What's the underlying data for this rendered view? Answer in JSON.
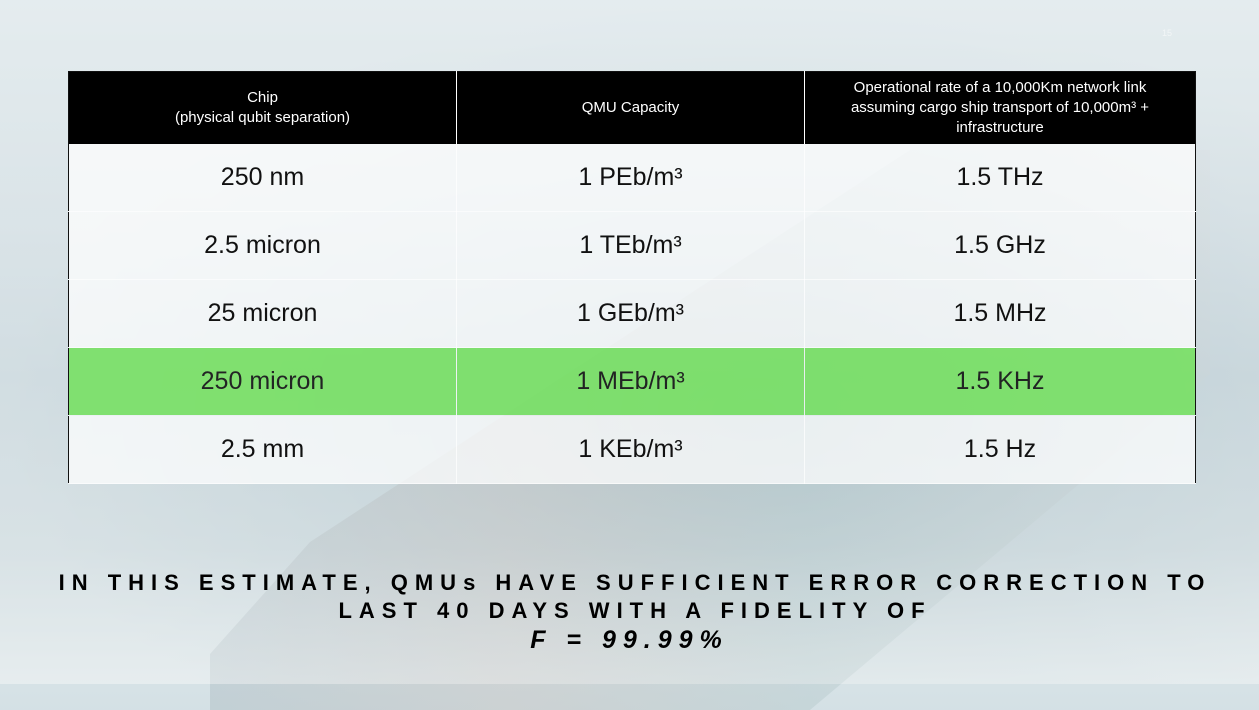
{
  "slide": {
    "page_number": "15"
  },
  "table": {
    "headers": [
      [
        "Chip",
        "(physical qubit separation)"
      ],
      [
        "QMU Capacity"
      ],
      [
        "Operational rate of a 10,000Km network link",
        "assuming cargo ship transport of 10,000m³ +",
        "infrastructure"
      ]
    ],
    "rows": [
      {
        "chip": "250 nm",
        "capacity": "1 PEb/m³",
        "rate": "1.5 THz",
        "highlight": false
      },
      {
        "chip": "2.5 micron",
        "capacity": "1 TEb/m³",
        "rate": "1.5 GHz",
        "highlight": false
      },
      {
        "chip": "25 micron",
        "capacity": "1 GEb/m³",
        "rate": "1.5 MHz",
        "highlight": false
      },
      {
        "chip": "250 micron",
        "capacity": "1 MEb/m³",
        "rate": "1.5 KHz",
        "highlight": true
      },
      {
        "chip": "2.5 mm",
        "capacity": "1 KEb/m³",
        "rate": "1.5 Hz",
        "highlight": false
      }
    ],
    "highlight_color": "#78e164"
  },
  "summary": {
    "line1": "IN THIS ESTIMATE, QMUs HAVE SUFFICIENT ERROR CORRECTION TO",
    "line2": "LAST 40 DAYS WITH A FIDELITY OF",
    "fidelity": "F = 99.99%"
  }
}
